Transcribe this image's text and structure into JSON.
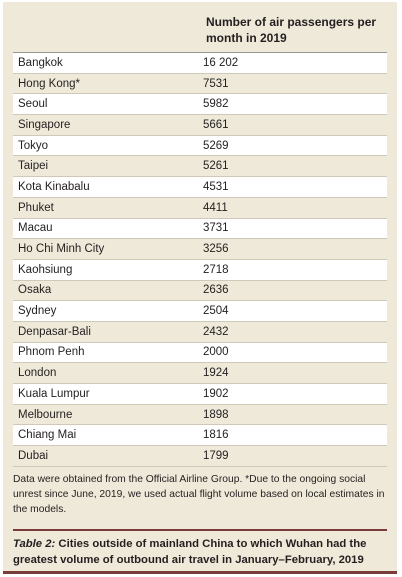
{
  "table": {
    "column_header": "Number of air passengers per month in 2019",
    "rows": [
      {
        "city": "Bangkok",
        "value": "16 202"
      },
      {
        "city": "Hong Kong*",
        "value": "7531"
      },
      {
        "city": "Seoul",
        "value": "5982"
      },
      {
        "city": "Singapore",
        "value": "5661"
      },
      {
        "city": "Tokyo",
        "value": "5269"
      },
      {
        "city": "Taipei",
        "value": "5261"
      },
      {
        "city": "Kota Kinabalu",
        "value": "4531"
      },
      {
        "city": "Phuket",
        "value": "4411"
      },
      {
        "city": "Macau",
        "value": "3731"
      },
      {
        "city": "Ho Chi Minh City",
        "value": "3256"
      },
      {
        "city": "Kaohsiung",
        "value": "2718"
      },
      {
        "city": "Osaka",
        "value": "2636"
      },
      {
        "city": "Sydney",
        "value": "2504"
      },
      {
        "city": "Denpasar-Bali",
        "value": "2432"
      },
      {
        "city": "Phnom Penh",
        "value": "2000"
      },
      {
        "city": "London",
        "value": "1924"
      },
      {
        "city": "Kuala Lumpur",
        "value": "1902"
      },
      {
        "city": "Melbourne",
        "value": "1898"
      },
      {
        "city": "Chiang Mai",
        "value": "1816"
      },
      {
        "city": "Dubai",
        "value": "1799"
      }
    ]
  },
  "footnote": "Data were obtained from the Official Airline Group. *Due to the ongoing social unrest since June, 2019, we used actual flight volume based on local estimates in the models.",
  "caption": {
    "label": "Table 2:",
    "text": " Cities outside of mainland China to which Wuhan had the greatest volume of outbound air travel in January–February, 2019"
  },
  "colors": {
    "background": "#efe9d9",
    "accent_rule": "#7a3b3b"
  }
}
